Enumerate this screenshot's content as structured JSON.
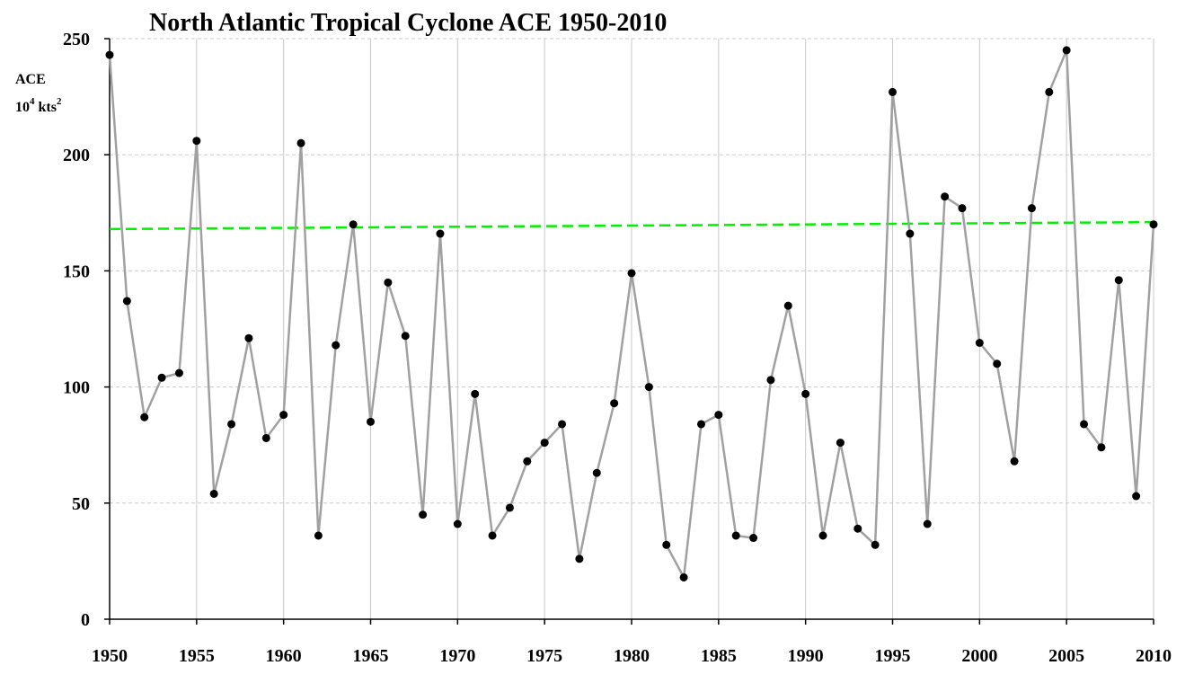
{
  "chart_data": {
    "type": "line",
    "title": "North Atlantic Tropical Cyclone ACE  1950-2010",
    "ylabel_line1": "ACE",
    "ylabel_line2": {
      "base": "10",
      "exp": "4",
      "unit": " kts",
      "unit_exp": "2"
    },
    "xlabel": "",
    "xlim": [
      1950,
      2010
    ],
    "ylim": [
      0,
      250
    ],
    "x_ticks": [
      "1950",
      "1955",
      "1960",
      "1965",
      "1970",
      "1975",
      "1980",
      "1985",
      "1990",
      "1995",
      "2000",
      "2005",
      "2010"
    ],
    "y_ticks": [
      "0",
      "50",
      "100",
      "150",
      "200",
      "250"
    ],
    "grid": "both, dashed horizontal, solid vertical",
    "colors": {
      "series": "#a0a0a0",
      "marker": "#000000",
      "trend": "#00ee00",
      "grid": "#c8c8c8"
    },
    "series": [
      {
        "x": [
          1950,
          1951,
          1952,
          1953,
          1954,
          1955,
          1956,
          1957,
          1958,
          1959,
          1960,
          1961,
          1962,
          1963,
          1964,
          1965,
          1966,
          1967,
          1968,
          1969,
          1970,
          1971,
          1972,
          1973,
          1974,
          1975,
          1976,
          1977,
          1978,
          1979,
          1980,
          1981,
          1982,
          1983,
          1984,
          1985,
          1986,
          1987,
          1988,
          1989,
          1990,
          1991,
          1992,
          1993,
          1994,
          1995,
          1996,
          1997,
          1998,
          1999,
          2000,
          2001,
          2002,
          2003,
          2004,
          2005,
          2006,
          2007,
          2008,
          2009,
          2010
        ],
        "values": [
          243,
          137,
          87,
          104,
          106,
          206,
          54,
          84,
          121,
          78,
          88,
          205,
          36,
          118,
          170,
          85,
          145,
          122,
          45,
          166,
          41,
          97,
          36,
          48,
          68,
          76,
          84,
          26,
          63,
          93,
          149,
          100,
          32,
          18,
          84,
          88,
          36,
          35,
          103,
          135,
          97,
          36,
          76,
          39,
          32,
          227,
          166,
          41,
          182,
          177,
          119,
          110,
          68,
          177,
          227,
          245,
          84,
          74,
          146,
          53,
          170
        ]
      }
    ],
    "trend": {
      "x": [
        1950,
        2010
      ],
      "values": [
        168,
        171
      ]
    }
  }
}
